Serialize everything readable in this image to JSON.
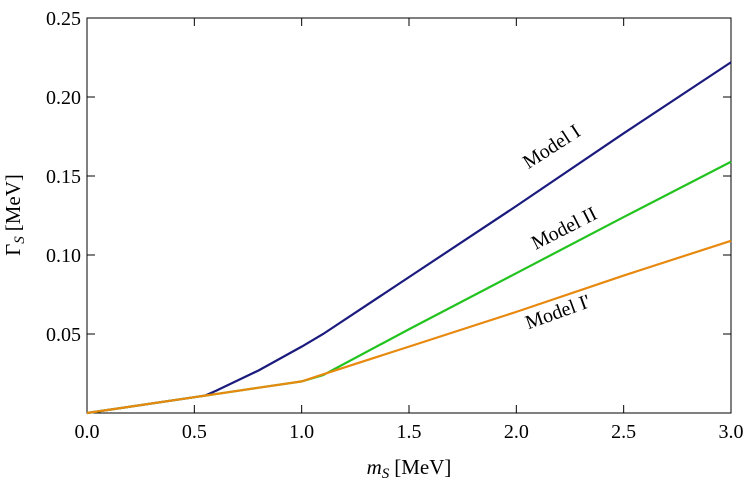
{
  "chart_data": {
    "type": "line",
    "xlabel": {
      "symbol": "m",
      "subscript": "S",
      "unit": "[MeV]"
    },
    "ylabel": {
      "symbol": "Γ",
      "subscript": "S",
      "unit": "[MeV]"
    },
    "x": [
      0,
      0.5,
      0.55,
      0.6,
      0.8,
      1.0,
      1.1,
      1.5,
      2.0,
      2.5,
      3.0
    ],
    "series": [
      {
        "name": "Model I",
        "color": "#1b1b7e",
        "values": [
          0,
          0.01,
          0.011,
          0.014,
          0.027,
          0.042,
          0.05,
          0.086,
          0.131,
          0.177,
          0.222
        ]
      },
      {
        "name": "Model II",
        "color": "#22c31e",
        "values": [
          0,
          0.01,
          0.011,
          0.012,
          0.016,
          0.02,
          0.024,
          0.053,
          0.0885,
          0.124,
          0.159
        ]
      },
      {
        "name": "Model I'",
        "color": "#e8890f",
        "values": [
          0,
          0.01,
          0.011,
          0.012,
          0.016,
          0.02,
          0.0245,
          0.042,
          0.064,
          0.087,
          0.109
        ]
      }
    ],
    "xlim": [
      0,
      3
    ],
    "ylim": [
      0,
      0.25
    ],
    "xticks": [
      {
        "value": 0,
        "label": "0.0"
      },
      0.5,
      {
        "value": 1,
        "label": "1.0"
      },
      1.5,
      {
        "value": 2,
        "label": "2.0"
      },
      2.5,
      {
        "value": 3,
        "label": "3.0"
      }
    ],
    "yticks": [
      0.05,
      {
        "value": 0.1,
        "label": "0.10"
      },
      0.15,
      {
        "value": 0.2,
        "label": "0.20"
      },
      0.25
    ]
  }
}
